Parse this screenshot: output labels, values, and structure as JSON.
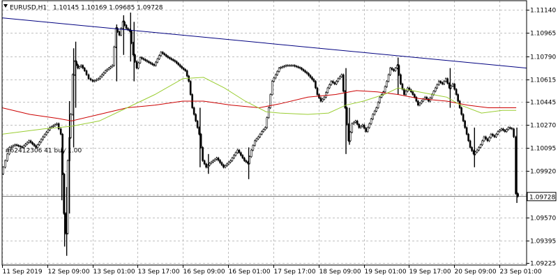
{
  "header": {
    "symbol_label": "EURUSD,H1",
    "ohlc": "1.10145 1.10169 1.09685 1.09728"
  },
  "order_label": "#62412306 41 buy 1.00",
  "current_price_label": "1.09728",
  "colors": {
    "background": "#ffffff",
    "candle": "#000000",
    "grid": "#c0c0c0",
    "trendline": "#000080",
    "ma_fast": "#9acd32",
    "ma_slow": "#cc0000",
    "order_line": "#808080"
  },
  "chart_data": {
    "type": "candlestick",
    "symbol": "EURUSD",
    "timeframe": "H1",
    "ylim": [
      1.0921,
      1.1121
    ],
    "y_ticks": [
      "1.11140",
      "1.10965",
      "1.10790",
      "1.10615",
      "1.10445",
      "1.10270",
      "1.10095",
      "1.09920",
      "1.09745",
      "1.09570",
      "1.09395",
      "1.09225"
    ],
    "x_ticks": [
      "11 Sep 2019",
      "12 Sep 09:00",
      "13 Sep 01:00",
      "13 Sep 17:00",
      "16 Sep 09:00",
      "16 Sep 01:00",
      "17 Sep 17:00",
      "18 Sep 09:00",
      "19 Sep 01:00",
      "19 Sep 17:00",
      "20 Sep 09:00",
      "23 Sep 01:00"
    ],
    "close_path": [
      [
        0,
        1.099
      ],
      [
        6,
        1.1
      ],
      [
        12,
        1.101
      ],
      [
        20,
        1.1012
      ],
      [
        30,
        1.101
      ],
      [
        40,
        1.1015
      ],
      [
        50,
        1.101
      ],
      [
        60,
        1.1018
      ],
      [
        70,
        1.1025
      ],
      [
        80,
        1.1028
      ],
      [
        86,
        1.102
      ],
      [
        90,
        1.096
      ],
      [
        93,
        1.0945
      ],
      [
        96,
        1.1
      ],
      [
        100,
        1.1035
      ],
      [
        103,
        1.1065
      ],
      [
        106,
        1.1075
      ],
      [
        110,
        1.107
      ],
      [
        115,
        1.1072
      ],
      [
        120,
        1.1068
      ],
      [
        126,
        1.1062
      ],
      [
        132,
        1.106
      ],
      [
        140,
        1.1062
      ],
      [
        150,
        1.1068
      ],
      [
        160,
        1.1072
      ],
      [
        165,
        1.11
      ],
      [
        170,
        1.1095
      ],
      [
        175,
        1.1105
      ],
      [
        180,
        1.11
      ],
      [
        185,
        1.1098
      ],
      [
        190,
        1.108
      ],
      [
        195,
        1.107
      ],
      [
        200,
        1.1078
      ],
      [
        210,
        1.1075
      ],
      [
        220,
        1.1072
      ],
      [
        230,
        1.1082
      ],
      [
        240,
        1.1078
      ],
      [
        250,
        1.1075
      ],
      [
        260,
        1.107
      ],
      [
        265,
        1.1068
      ],
      [
        270,
        1.106
      ],
      [
        275,
        1.104
      ],
      [
        280,
        1.103
      ],
      [
        285,
        1.102
      ],
      [
        290,
        1.1
      ],
      [
        295,
        1.0995
      ],
      [
        300,
        1.0998
      ],
      [
        310,
        1.1002
      ],
      [
        320,
        1.0995
      ],
      [
        330,
        1.1
      ],
      [
        340,
        1.1008
      ],
      [
        350,
        1.1
      ],
      [
        355,
        1.0998
      ],
      [
        360,
        1.1008
      ],
      [
        365,
        1.1015
      ],
      [
        370,
        1.1018
      ],
      [
        375,
        1.1022
      ],
      [
        380,
        1.1025
      ],
      [
        385,
        1.104
      ],
      [
        390,
        1.106
      ],
      [
        395,
        1.1065
      ],
      [
        400,
        1.107
      ],
      [
        410,
        1.1072
      ],
      [
        420,
        1.1072
      ],
      [
        430,
        1.107
      ],
      [
        440,
        1.1066
      ],
      [
        450,
        1.106
      ],
      [
        455,
        1.105
      ],
      [
        460,
        1.1045
      ],
      [
        465,
        1.1048
      ],
      [
        470,
        1.1055
      ],
      [
        475,
        1.106
      ],
      [
        480,
        1.1058
      ],
      [
        485,
        1.1062
      ],
      [
        490,
        1.1065
      ],
      [
        495,
        1.104
      ],
      [
        500,
        1.1015
      ],
      [
        505,
        1.1028
      ],
      [
        510,
        1.103
      ],
      [
        515,
        1.1025
      ],
      [
        520,
        1.1027
      ],
      [
        525,
        1.1022
      ],
      [
        530,
        1.1028
      ],
      [
        535,
        1.1035
      ],
      [
        540,
        1.104
      ],
      [
        545,
        1.1048
      ],
      [
        550,
        1.1052
      ],
      [
        555,
        1.106
      ],
      [
        560,
        1.107
      ],
      [
        565,
        1.1068
      ],
      [
        570,
        1.1072
      ],
      [
        575,
        1.1058
      ],
      [
        580,
        1.105
      ],
      [
        585,
        1.1055
      ],
      [
        590,
        1.1052
      ],
      [
        595,
        1.1048
      ],
      [
        600,
        1.1042
      ],
      [
        605,
        1.1045
      ],
      [
        610,
        1.1048
      ],
      [
        615,
        1.1045
      ],
      [
        620,
        1.105
      ],
      [
        625,
        1.1055
      ],
      [
        630,
        1.106
      ],
      [
        635,
        1.1058
      ],
      [
        640,
        1.1062
      ],
      [
        645,
        1.1055
      ],
      [
        650,
        1.1058
      ],
      [
        655,
        1.105
      ],
      [
        660,
        1.104
      ],
      [
        665,
        1.103
      ],
      [
        670,
        1.102
      ],
      [
        675,
        1.101
      ],
      [
        680,
        1.1005
      ],
      [
        685,
        1.1008
      ],
      [
        690,
        1.1012
      ],
      [
        695,
        1.1018
      ],
      [
        700,
        1.1015
      ],
      [
        705,
        1.102
      ],
      [
        710,
        1.1018
      ],
      [
        715,
        1.1022
      ],
      [
        720,
        1.1024
      ],
      [
        725,
        1.1022
      ],
      [
        730,
        1.1025
      ],
      [
        735,
        1.1024
      ],
      [
        738,
        1.1018
      ],
      [
        741,
        1.0975
      ],
      [
        744,
        1.0973
      ]
    ],
    "wicks": [
      {
        "x": 86,
        "high": 1.101,
        "low": 1.097
      },
      {
        "x": 90,
        "high": 1.099,
        "low": 1.0935
      },
      {
        "x": 93,
        "high": 1.098,
        "low": 1.0928
      },
      {
        "x": 97,
        "high": 1.1045,
        "low": 1.096
      },
      {
        "x": 103,
        "high": 1.1085,
        "low": 1.101
      },
      {
        "x": 106,
        "high": 1.109,
        "low": 1.104
      },
      {
        "x": 165,
        "high": 1.1103,
        "low": 1.106
      },
      {
        "x": 175,
        "high": 1.111,
        "low": 1.108
      },
      {
        "x": 185,
        "high": 1.1112,
        "low": 1.1075
      },
      {
        "x": 190,
        "high": 1.1105,
        "low": 1.106
      },
      {
        "x": 285,
        "high": 1.104,
        "low": 1.0995
      },
      {
        "x": 297,
        "high": 1.1005,
        "low": 1.099
      },
      {
        "x": 355,
        "high": 1.101,
        "low": 1.0986
      },
      {
        "x": 495,
        "high": 1.107,
        "low": 1.1005
      },
      {
        "x": 500,
        "high": 1.104,
        "low": 1.1012
      },
      {
        "x": 570,
        "high": 1.1078,
        "low": 1.105
      },
      {
        "x": 645,
        "high": 1.107,
        "low": 1.104
      },
      {
        "x": 680,
        "high": 1.1025,
        "low": 1.0995
      },
      {
        "x": 741,
        "high": 1.1025,
        "low": 1.0968
      }
    ],
    "ma_fast": [
      [
        0,
        1.102
      ],
      [
        60,
        1.1024
      ],
      [
        100,
        1.1026
      ],
      [
        140,
        1.103
      ],
      [
        180,
        1.104
      ],
      [
        220,
        1.105
      ],
      [
        260,
        1.1062
      ],
      [
        290,
        1.1063
      ],
      [
        320,
        1.1055
      ],
      [
        350,
        1.1045
      ],
      [
        380,
        1.1037
      ],
      [
        400,
        1.1036
      ],
      [
        440,
        1.1035
      ],
      [
        470,
        1.1036
      ],
      [
        495,
        1.1042
      ],
      [
        520,
        1.1045
      ],
      [
        550,
        1.105
      ],
      [
        570,
        1.1055
      ],
      [
        600,
        1.1052
      ],
      [
        640,
        1.1048
      ],
      [
        660,
        1.1042
      ],
      [
        690,
        1.1036
      ],
      [
        720,
        1.1038
      ],
      [
        740,
        1.1038
      ]
    ],
    "ma_slow": [
      [
        0,
        1.104
      ],
      [
        40,
        1.1035
      ],
      [
        80,
        1.1032
      ],
      [
        100,
        1.103
      ],
      [
        140,
        1.1035
      ],
      [
        180,
        1.104
      ],
      [
        220,
        1.1042
      ],
      [
        260,
        1.1045
      ],
      [
        290,
        1.1045
      ],
      [
        330,
        1.1042
      ],
      [
        370,
        1.104
      ],
      [
        400,
        1.1043
      ],
      [
        440,
        1.1048
      ],
      [
        480,
        1.105
      ],
      [
        510,
        1.1053
      ],
      [
        540,
        1.1052
      ],
      [
        570,
        1.105
      ],
      [
        600,
        1.1047
      ],
      [
        640,
        1.1045
      ],
      [
        670,
        1.1042
      ],
      [
        700,
        1.104
      ],
      [
        740,
        1.104
      ]
    ],
    "trendline": {
      "start": [
        0,
        1.1108
      ],
      "end": [
        755,
        1.107
      ]
    },
    "order_price": 1.09735,
    "current_price": 1.09728
  }
}
